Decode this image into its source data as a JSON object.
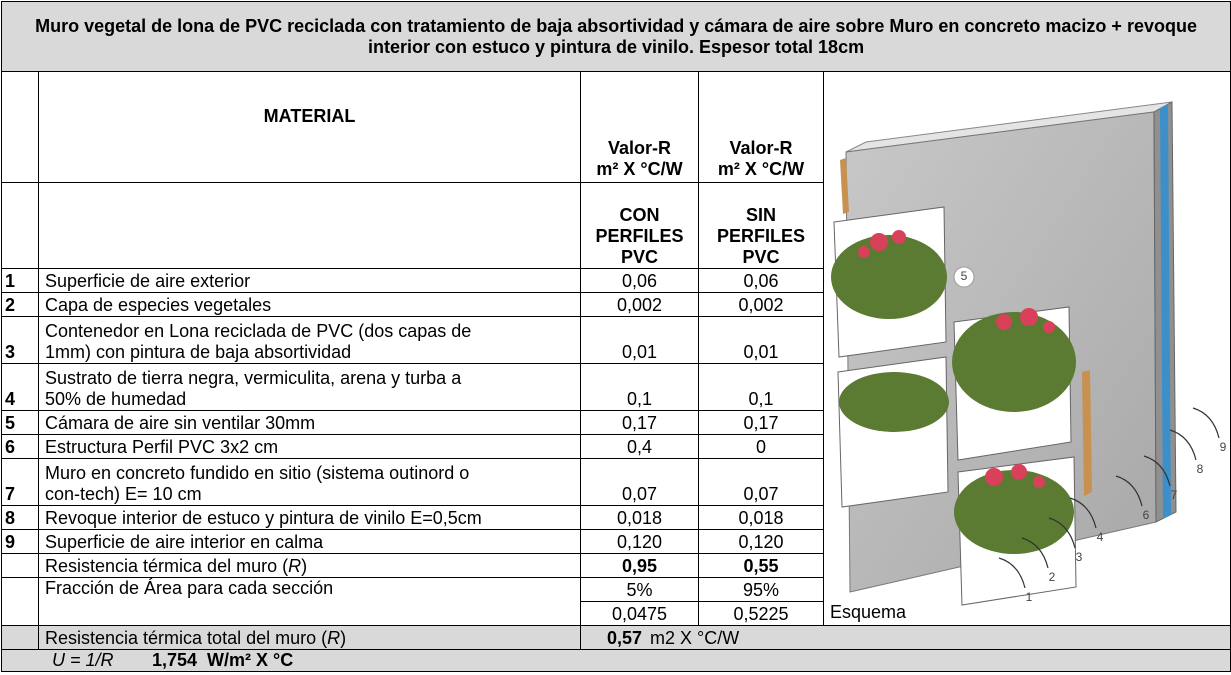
{
  "title": "Muro vegetal de lona de PVC reciclada con tratamiento de baja absortividad y cámara de aire sobre Muro en concreto macizo + revoque interior con estuco y pintura de vinilo. Espesor total 18cm",
  "header": {
    "material": "MATERIAL",
    "con": {
      "name": "Valor-R",
      "unit": "m² X °C/W",
      "case": [
        "CON",
        "PERFILES",
        "PVC"
      ]
    },
    "sin": {
      "name": "Valor-R",
      "unit": "m² X °C/W",
      "case": [
        "SIN",
        "PERFILES",
        "PVC"
      ]
    }
  },
  "rows": [
    {
      "n": "1",
      "material": [
        "Superficie de aire exterior"
      ],
      "con": "0,06",
      "sin": "0,06"
    },
    {
      "n": "2",
      "material": [
        "Capa de especies vegetales"
      ],
      "con": "0,002",
      "sin": "0,002"
    },
    {
      "n": "3",
      "material": [
        "Contenedor en Lona reciclada de PVC (dos capas de",
        "1mm) con pintura de baja absortividad"
      ],
      "con": "0,01",
      "sin": "0,01"
    },
    {
      "n": "4",
      "material": [
        "Sustrato de tierra negra, vermiculita, arena y turba a",
        "50% de humedad"
      ],
      "con": "0,1",
      "sin": "0,1"
    },
    {
      "n": "5",
      "material": [
        "Cámara de aire sin ventilar 30mm"
      ],
      "con": "0,17",
      "sin": "0,17"
    },
    {
      "n": "6",
      "material": [
        "Estructura Perfil PVC 3x2 cm"
      ],
      "con": "0,4",
      "sin": "0"
    },
    {
      "n": "7",
      "material": [
        "Muro en concreto fundido en sitio (sistema outinord o",
        "con-tech) E= 10 cm"
      ],
      "con": "0,07",
      "sin": "0,07"
    },
    {
      "n": "8",
      "material": [
        "Revoque interior de estuco y pintura de vinilo E=0,5cm"
      ],
      "con": "0,018",
      "sin": "0,018"
    },
    {
      "n": "9",
      "material": [
        "Superficie de aire interior en calma"
      ],
      "con": "0,120",
      "sin": "0,120"
    }
  ],
  "summary": {
    "r_label": [
      "Resistencia térmica del muro (",
      "R",
      ")"
    ],
    "r_con": "0,95",
    "r_sin": "0,55",
    "fraction_label": "Fracción de Área para cada sección",
    "fraction_con": "5%",
    "fraction_sin": "95%",
    "weighted_con": "0,0475",
    "weighted_sin": "0,5225"
  },
  "scheme": {
    "caption": "Esquema",
    "labels": [
      "1",
      "2",
      "3",
      "4",
      "5",
      "6",
      "7",
      "8",
      "9"
    ]
  },
  "total": {
    "label": [
      "Resistencia térmica total del muro (",
      "R",
      ")"
    ],
    "value": "0,57",
    "unit": "m2 X °C/W"
  },
  "u": {
    "label": "U = 1/R",
    "value": "1,754",
    "unit": "W/m² X °C"
  }
}
